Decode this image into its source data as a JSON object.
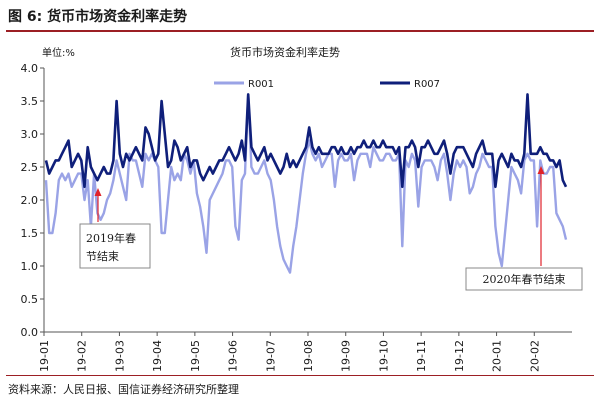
{
  "figure": {
    "title": "图 6:  货币市场资金利率走势",
    "source": "资料来源：人民日报、国信证券经济研究所整理"
  },
  "chart_data": {
    "type": "line",
    "title": "货币市场资金利率走势",
    "ylabel": "单位:%",
    "xlabel": "",
    "ylim": [
      0,
      4.0
    ],
    "yticks": [
      "0.0",
      "0.5",
      "1.0",
      "1.5",
      "2.0",
      "2.5",
      "3.0",
      "3.5",
      "4.0"
    ],
    "xticks": [
      "19-01",
      "19-02",
      "19-03",
      "19-04",
      "19-05",
      "19-06",
      "19-07",
      "19-08",
      "19-09",
      "19-10",
      "19-11",
      "19-12",
      "20-01",
      "20-02"
    ],
    "grid": false,
    "legend": "top",
    "colors": {
      "R001": "#9aa3e6",
      "R007": "#0f1f7a"
    },
    "annotations": [
      "2019年春\n节结束",
      "2020年春节结束"
    ],
    "series": [
      {
        "name": "R001",
        "values": [
          2.3,
          1.5,
          1.5,
          1.8,
          2.3,
          2.4,
          2.3,
          2.4,
          2.2,
          2.3,
          2.4,
          2.4,
          2.0,
          2.3,
          1.6,
          2.4,
          1.8,
          1.7,
          1.8,
          2.0,
          2.1,
          2.3,
          2.6,
          2.4,
          2.2,
          2.0,
          2.7,
          2.6,
          2.6,
          2.4,
          2.2,
          2.7,
          2.6,
          2.7,
          2.6,
          2.5,
          1.5,
          1.5,
          2.0,
          2.5,
          2.3,
          2.4,
          2.3,
          2.7,
          2.6,
          2.4,
          2.6,
          2.1,
          1.9,
          1.6,
          1.2,
          2.0,
          2.1,
          2.2,
          2.3,
          2.4,
          2.6,
          2.6,
          2.5,
          1.6,
          1.4,
          2.3,
          2.4,
          3.6,
          2.5,
          2.4,
          2.4,
          2.5,
          2.6,
          2.4,
          2.3,
          2.0,
          1.6,
          1.3,
          1.1,
          1.0,
          0.9,
          1.3,
          1.6,
          2.0,
          2.4,
          2.7,
          2.9,
          2.7,
          2.6,
          2.7,
          2.5,
          2.6,
          2.7,
          2.7,
          2.2,
          2.6,
          2.7,
          2.6,
          2.6,
          2.7,
          2.3,
          2.6,
          2.7,
          2.7,
          2.7,
          2.5,
          2.8,
          2.7,
          2.6,
          2.6,
          2.7,
          2.7,
          2.6,
          2.6,
          2.7,
          1.3,
          2.6,
          2.5,
          2.7,
          2.6,
          1.9,
          2.5,
          2.6,
          2.6,
          2.6,
          2.5,
          2.3,
          2.6,
          2.7,
          2.4,
          2.0,
          2.4,
          2.6,
          2.5,
          2.6,
          2.5,
          2.1,
          2.2,
          2.4,
          2.5,
          2.7,
          2.6,
          2.5,
          2.5,
          1.6,
          1.2,
          1.0,
          1.5,
          2.0,
          2.5,
          2.4,
          2.3,
          2.1,
          2.6,
          2.7,
          2.6,
          2.6,
          1.6,
          2.6,
          2.4,
          2.4,
          2.5,
          2.5,
          1.8,
          1.7,
          1.6,
          1.4
        ]
      },
      {
        "name": "R007",
        "values": [
          2.6,
          2.4,
          2.5,
          2.6,
          2.6,
          2.7,
          2.8,
          2.9,
          2.5,
          2.6,
          2.7,
          2.6,
          2.2,
          2.8,
          2.5,
          2.4,
          2.3,
          2.4,
          2.5,
          2.4,
          2.4,
          2.6,
          3.5,
          2.7,
          2.5,
          2.7,
          2.6,
          2.7,
          2.8,
          2.7,
          2.6,
          3.1,
          3.0,
          2.8,
          2.6,
          2.7,
          3.5,
          3.0,
          2.5,
          2.6,
          2.9,
          2.8,
          2.6,
          2.7,
          2.8,
          2.5,
          2.6,
          2.6,
          2.4,
          2.3,
          2.4,
          2.5,
          2.4,
          2.5,
          2.6,
          2.6,
          2.7,
          2.8,
          2.7,
          2.6,
          2.7,
          2.9,
          2.6,
          3.6,
          2.8,
          2.7,
          2.6,
          2.7,
          2.8,
          2.6,
          2.7,
          2.6,
          2.5,
          2.4,
          2.5,
          2.7,
          2.5,
          2.6,
          2.5,
          2.6,
          2.7,
          2.8,
          3.1,
          2.8,
          2.7,
          2.8,
          2.7,
          2.7,
          2.7,
          2.8,
          2.8,
          2.7,
          2.8,
          2.7,
          2.7,
          2.8,
          2.7,
          2.8,
          2.8,
          2.9,
          2.8,
          2.8,
          2.9,
          2.8,
          2.8,
          2.9,
          2.8,
          2.8,
          2.8,
          2.7,
          2.8,
          2.2,
          2.8,
          2.8,
          2.9,
          2.8,
          2.5,
          2.8,
          2.8,
          2.9,
          2.8,
          2.7,
          2.7,
          2.8,
          2.9,
          2.7,
          2.4,
          2.7,
          2.8,
          2.8,
          2.8,
          2.7,
          2.6,
          2.5,
          2.7,
          2.8,
          2.9,
          2.7,
          2.7,
          2.7,
          2.2,
          2.6,
          2.7,
          2.6,
          2.5,
          2.7,
          2.6,
          2.6,
          2.5,
          2.7,
          3.6,
          2.7,
          2.7,
          2.7,
          2.8,
          2.7,
          2.7,
          2.6,
          2.6,
          2.5,
          2.6,
          2.3,
          2.2
        ]
      }
    ]
  }
}
